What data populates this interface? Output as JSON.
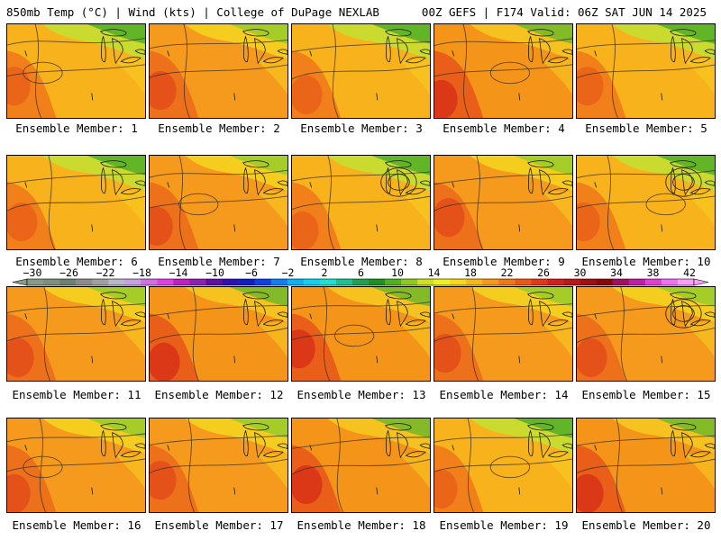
{
  "header": {
    "title_left": "850mb Temp (°C) | Wind (kts) | College of DuPage NEXLAB",
    "title_right": "00Z GEFS | F174 Valid: 06Z SAT JUN 14 2025"
  },
  "colorbar": {
    "ticks": [
      "-30",
      "-26",
      "-22",
      "-18",
      "-14",
      "-10",
      "-6",
      "-2",
      "2",
      "6",
      "10",
      "14",
      "18",
      "22",
      "26",
      "30",
      "34",
      "38",
      "42"
    ],
    "colors": [
      "#8a9a8a",
      "#7f8f7f",
      "#6f7f70",
      "#8c8c8c",
      "#a0a0a0",
      "#b8b8c8",
      "#c8a0e0",
      "#d070e0",
      "#e040e0",
      "#c020c0",
      "#9020b0",
      "#6010a0",
      "#3010b0",
      "#1020c0",
      "#1040e0",
      "#1080f0",
      "#10b0f0",
      "#10d0f0",
      "#20e0d0",
      "#20c090",
      "#20a050",
      "#209020",
      "#50b020",
      "#90c820",
      "#d0e020",
      "#f0f020",
      "#f8d818",
      "#f8b818",
      "#f89818",
      "#f07818",
      "#e85818",
      "#e03818",
      "#d02020",
      "#b81818",
      "#a01010",
      "#880808",
      "#a01060",
      "#c020a0",
      "#e040d0",
      "#f070f0",
      "#f8a0f8"
    ]
  },
  "panels": [
    {
      "label": "Ensemble Member: 1",
      "scheme": "cool"
    },
    {
      "label": "Ensemble Member: 2",
      "scheme": "warm"
    },
    {
      "label": "Ensemble Member: 3",
      "scheme": "cool"
    },
    {
      "label": "Ensemble Member: 4",
      "scheme": "hot"
    },
    {
      "label": "Ensemble Member: 5",
      "scheme": "cool"
    },
    {
      "label": "Ensemble Member: 6",
      "scheme": "cool"
    },
    {
      "label": "Ensemble Member: 7",
      "scheme": "warm"
    },
    {
      "label": "Ensemble Member: 8",
      "scheme": "cool"
    },
    {
      "label": "Ensemble Member: 9",
      "scheme": "warm"
    },
    {
      "label": "Ensemble Member: 10",
      "scheme": "cool"
    },
    {
      "label": "Ensemble Member: 11",
      "scheme": "warm"
    },
    {
      "label": "Ensemble Member: 12",
      "scheme": "hot"
    },
    {
      "label": "Ensemble Member: 13",
      "scheme": "hot"
    },
    {
      "label": "Ensemble Member: 14",
      "scheme": "warm"
    },
    {
      "label": "Ensemble Member: 15",
      "scheme": "warm"
    },
    {
      "label": "Ensemble Member: 16",
      "scheme": "warm"
    },
    {
      "label": "Ensemble Member: 17",
      "scheme": "warm"
    },
    {
      "label": "Ensemble Member: 18",
      "scheme": "hot"
    },
    {
      "label": "Ensemble Member: 19",
      "scheme": "cool"
    },
    {
      "label": "Ensemble Member: 20",
      "scheme": "hot"
    }
  ]
}
